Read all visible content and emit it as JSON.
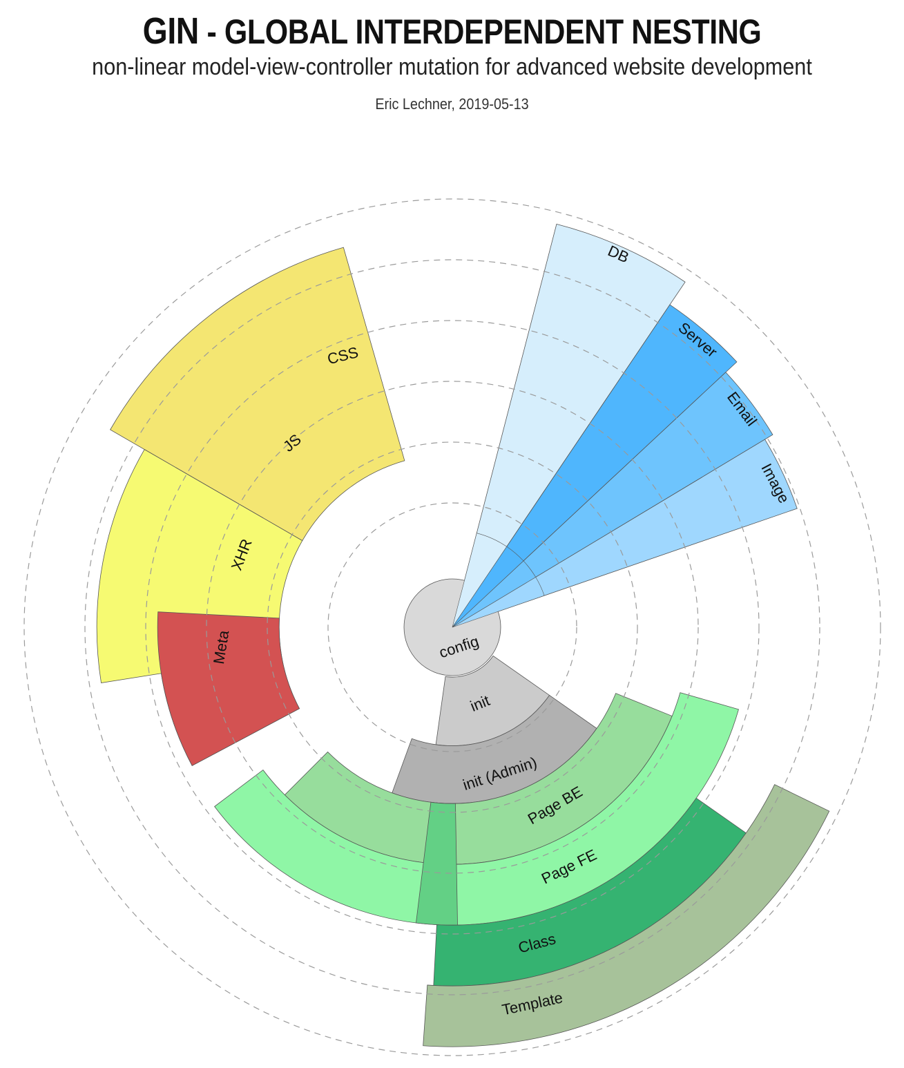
{
  "header": {
    "brand": "GIN",
    "title_rest": " - GLOBAL INTERDEPENDENT NESTING",
    "subtitle": "non-linear model-view-controller mutation for advanced website development",
    "byline": "Eric Lechner, 2019-05-13"
  },
  "colors": {
    "ring_grid": "#9a9a9a",
    "segment_stroke": "#555555"
  },
  "diagram": {
    "center": {
      "label": "config",
      "color": "#d9d9d9"
    },
    "segments": [
      {
        "id": "db",
        "label": "DB",
        "color": "#d6eefc",
        "inner": 0,
        "outer": 6.85,
        "start": 14.5,
        "end": 34
      },
      {
        "id": "server",
        "label": "Server",
        "color": "#4fb6fd",
        "inner": 0,
        "outer": 6.4,
        "start": 34,
        "end": 47
      },
      {
        "id": "email",
        "label": "Email",
        "color": "#6ec4fd",
        "inner": 0,
        "outer": 6.15,
        "start": 47,
        "end": 59
      },
      {
        "id": "image",
        "label": "Image",
        "color": "#9fd7fe",
        "inner": 0,
        "outer": 6.0,
        "start": 59,
        "end": 71
      },
      {
        "id": "css",
        "label": "CSS",
        "color": "#f4e672",
        "inner": 2.85,
        "outer": 6.5,
        "start": 344,
        "end": 300
      },
      {
        "id": "js",
        "label": "JS",
        "color": "#f6fa72",
        "inner": 2.85,
        "outer": 5.85,
        "start": 300,
        "end": 261
      },
      {
        "id": "xhr",
        "label": "XHR",
        "color": "#fe7070",
        "inner": 2.85,
        "outer": 4.85,
        "start": 261,
        "end": 242
      },
      {
        "id": "meta",
        "label": "Meta",
        "color": "#d35252",
        "inner": 2.85,
        "outer": 4.85,
        "start": 242,
        "end": 273
      },
      {
        "id": "init",
        "label": "init",
        "color": "#cbcbcb",
        "inner": 0.82,
        "outer": 1.95,
        "start": 125,
        "end": 188
      },
      {
        "id": "init-admin",
        "label": "init (Admin)",
        "color": "#b1b1b1",
        "inner": 1.95,
        "outer": 2.9,
        "start": 125,
        "end": 200
      },
      {
        "id": "page-be",
        "label": "Page BE",
        "color": "#97dd9c",
        "inner": 2.9,
        "outer": 3.9,
        "start": 112,
        "end": 225
      },
      {
        "id": "page-fe",
        "label": "Page FE",
        "color": "#8ff6a6",
        "inner": 3.9,
        "outer": 4.9,
        "start": 106,
        "end": 233
      },
      {
        "id": "page-fe-mid",
        "label": "",
        "color": "#63d085",
        "inner": 2.9,
        "outer": 4.9,
        "start": 179,
        "end": 187
      },
      {
        "id": "class",
        "label": "Class",
        "color": "#35b371",
        "inner": 4.9,
        "outer": 5.9,
        "start": 125,
        "end": 183
      },
      {
        "id": "template",
        "label": "Template",
        "color": "#a7c29a",
        "inner": 5.9,
        "outer": 6.9,
        "start": 116,
        "end": 184
      }
    ]
  }
}
